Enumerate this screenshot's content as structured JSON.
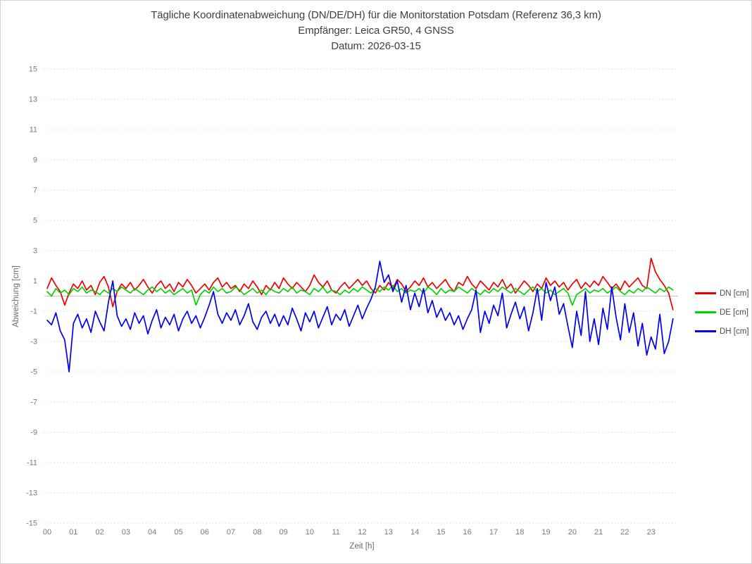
{
  "title": {
    "line1": "Tägliche Koordinatenabweichung (DN/DE/DH) für die Monitorstation Potsdam (Referenz 36,3 km)",
    "line2": "Empfänger: Leica GR50, 4 GNSS",
    "line3": "Datum: 2026-03-15"
  },
  "colors": {
    "title_text": "#3f3f3f",
    "tick_text": "#7a7a7a",
    "grid_dashed": "#dadada",
    "zero_line": "#c4c4c4",
    "window_border": "#d3d3d3",
    "dn_red": "#ee0000",
    "de_green": "#00d500",
    "dh_blue": "#0000ee"
  },
  "chart_data": {
    "type": "line",
    "title": "Tägliche Koordinatenabweichung (DN/DE/DH) für die Monitorstation Potsdam (Referenz 36,3 km)",
    "subtitle": "Empfänger: Leica GR50, 4 GNSS",
    "date_label": "Datum: 2026-03-15",
    "xlabel": "Zeit [h]",
    "ylabel": "Abweichung [cm]",
    "xlim": [
      0,
      24
    ],
    "ylim": [
      -15,
      15
    ],
    "x_ticks": [
      "00",
      "01",
      "02",
      "03",
      "04",
      "05",
      "06",
      "07",
      "08",
      "09",
      "10",
      "11",
      "12",
      "13",
      "14",
      "15",
      "16",
      "17",
      "18",
      "19",
      "20",
      "21",
      "22",
      "23"
    ],
    "y_ticks": [
      15,
      13,
      11,
      9,
      7,
      5,
      3,
      1,
      -1,
      -3,
      -5,
      -7,
      -9,
      -11,
      -13,
      -15
    ],
    "grid": "dashed horizontal gridlines at odd values, solid line at 0",
    "legend_position": "right",
    "sample_interval_minutes": 10,
    "series": [
      {
        "name": "DN [cm]",
        "color": "#ee0000",
        "values": [
          0.5,
          1.2,
          0.7,
          0.3,
          -0.6,
          0.2,
          0.8,
          0.5,
          1.0,
          0.4,
          0.7,
          0.1,
          0.9,
          1.3,
          0.6,
          -0.7,
          0.3,
          0.8,
          0.5,
          0.9,
          0.4,
          0.7,
          1.1,
          0.6,
          0.2,
          0.7,
          1.0,
          0.5,
          0.8,
          0.3,
          0.9,
          0.6,
          1.1,
          0.7,
          0.2,
          0.5,
          0.8,
          0.4,
          0.9,
          1.2,
          0.6,
          0.9,
          0.5,
          0.7,
          0.3,
          0.8,
          0.5,
          1.0,
          0.6,
          0.1,
          0.7,
          0.4,
          0.9,
          0.5,
          1.2,
          0.8,
          0.5,
          0.9,
          0.6,
          0.3,
          0.7,
          1.4,
          0.9,
          0.6,
          1.0,
          0.4,
          0.2,
          0.6,
          0.9,
          0.5,
          0.8,
          1.1,
          0.7,
          1.0,
          0.5,
          0.2,
          0.7,
          0.4,
          0.9,
          0.5,
          1.1,
          0.8,
          0.3,
          0.6,
          1.0,
          0.7,
          1.2,
          0.6,
          0.9,
          0.5,
          0.8,
          1.1,
          0.6,
          0.3,
          0.9,
          0.7,
          1.3,
          0.8,
          0.5,
          1.0,
          0.7,
          0.4,
          0.9,
          0.6,
          1.1,
          0.5,
          0.8,
          0.2,
          0.6,
          1.0,
          0.7,
          0.3,
          0.8,
          0.5,
          1.2,
          0.7,
          1.0,
          0.6,
          0.9,
          0.4,
          0.8,
          1.1,
          0.5,
          0.9,
          0.6,
          1.0,
          0.7,
          1.3,
          0.9,
          0.5,
          0.8,
          0.4,
          1.0,
          0.6,
          0.9,
          1.2,
          0.7,
          0.5,
          2.5,
          1.6,
          1.1,
          0.7,
          0.2,
          -0.9
        ]
      },
      {
        "name": "DE [cm]",
        "color": "#00d500",
        "values": [
          0.3,
          0.0,
          0.5,
          0.2,
          0.4,
          0.1,
          0.5,
          0.3,
          0.6,
          0.2,
          0.4,
          0.3,
          0.1,
          0.4,
          0.2,
          0.5,
          0.3,
          0.6,
          0.4,
          0.2,
          0.5,
          0.3,
          0.1,
          0.4,
          0.6,
          0.3,
          0.5,
          0.2,
          0.4,
          0.1,
          0.3,
          0.5,
          0.2,
          0.4,
          -0.6,
          0.1,
          0.4,
          0.2,
          0.6,
          0.3,
          0.5,
          0.2,
          0.3,
          0.6,
          0.4,
          0.1,
          0.3,
          0.5,
          0.2,
          0.4,
          0.1,
          0.5,
          0.3,
          0.2,
          0.5,
          0.3,
          0.6,
          0.2,
          0.4,
          0.3,
          0.1,
          0.5,
          0.3,
          0.6,
          0.2,
          0.4,
          0.3,
          0.1,
          0.4,
          0.2,
          0.5,
          0.3,
          0.6,
          0.4,
          0.2,
          0.5,
          0.3,
          0.6,
          0.4,
          0.7,
          0.3,
          0.5,
          0.2,
          0.4,
          0.3,
          0.5,
          0.2,
          0.6,
          0.4,
          0.1,
          0.5,
          0.2,
          0.4,
          0.3,
          0.6,
          0.4,
          0.2,
          0.5,
          0.3,
          0.1,
          0.4,
          0.2,
          0.5,
          0.3,
          0.6,
          0.4,
          0.2,
          0.5,
          0.3,
          0.1,
          0.4,
          0.6,
          0.3,
          0.5,
          0.2,
          0.4,
          0.1,
          0.3,
          0.5,
          0.2,
          -0.6,
          0.1,
          0.3,
          0.5,
          0.2,
          0.4,
          0.3,
          0.5,
          0.2,
          0.4,
          0.6,
          0.3,
          0.1,
          0.4,
          0.2,
          0.5,
          0.3,
          0.6,
          0.4,
          0.2,
          0.5,
          0.3,
          0.6,
          0.4
        ]
      },
      {
        "name": "DH [cm]",
        "color": "#0000ee",
        "values": [
          -1.6,
          -1.9,
          -1.1,
          -2.3,
          -2.9,
          -5.0,
          -1.8,
          -1.2,
          -2.1,
          -1.5,
          -2.4,
          -1.0,
          -1.7,
          -2.3,
          -0.4,
          1.0,
          -1.3,
          -2.0,
          -1.5,
          -2.2,
          -1.1,
          -1.8,
          -1.3,
          -2.5,
          -1.6,
          -0.9,
          -2.1,
          -1.4,
          -1.9,
          -1.2,
          -2.3,
          -1.5,
          -1.0,
          -1.8,
          -1.3,
          -2.1,
          -1.4,
          -0.6,
          0.3,
          -1.2,
          -1.8,
          -1.1,
          -1.6,
          -0.9,
          -1.9,
          -1.3,
          -0.5,
          -1.7,
          -2.2,
          -1.4,
          -1.0,
          -1.8,
          -1.2,
          -2.0,
          -1.3,
          -1.9,
          -0.8,
          -1.5,
          -2.3,
          -1.1,
          -1.7,
          -1.0,
          -2.1,
          -1.4,
          -0.7,
          -1.9,
          -1.2,
          -1.6,
          -0.9,
          -2.0,
          -1.3,
          -0.6,
          -1.5,
          -0.8,
          -0.2,
          0.6,
          2.3,
          0.9,
          1.4,
          0.3,
          1.0,
          -0.4,
          0.7,
          -0.9,
          0.2,
          -0.7,
          0.5,
          -1.1,
          -0.3,
          -1.4,
          -0.8,
          -1.6,
          -1.1,
          -1.9,
          -1.3,
          -2.2,
          -1.5,
          -0.9,
          0.4,
          -2.4,
          -1.0,
          -1.8,
          -0.6,
          -1.3,
          0.2,
          -2.1,
          -1.2,
          -0.4,
          -1.5,
          -0.7,
          -2.3,
          -1.1,
          0.5,
          -1.6,
          0.9,
          -0.3,
          0.6,
          -1.2,
          -0.5,
          -2.0,
          -3.4,
          -1.0,
          -2.6,
          0.3,
          -3.0,
          -1.5,
          -3.2,
          -0.8,
          -2.2,
          0.6,
          -1.4,
          -2.9,
          -0.5,
          -2.4,
          -1.1,
          -3.3,
          -1.8,
          -3.9,
          -2.7,
          -3.5,
          -1.2,
          -3.8,
          -3.0,
          -1.5
        ]
      }
    ]
  }
}
